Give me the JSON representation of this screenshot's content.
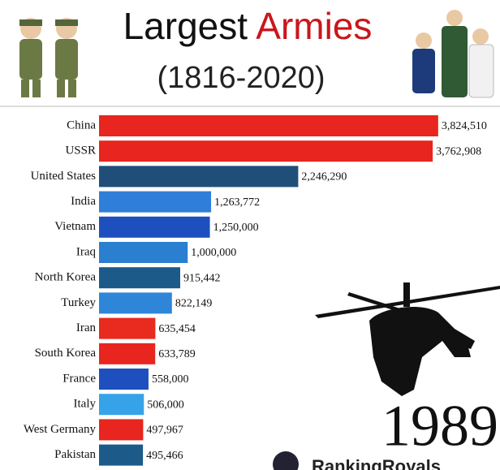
{
  "chart_data": {
    "type": "bar",
    "orientation": "horizontal",
    "title": [
      "Largest",
      "Armies"
    ],
    "subtitle": "(1816-2020)",
    "year": "1989",
    "watermark": "RankingRoyals",
    "categories": [
      "China",
      "USSR",
      "United States",
      "India",
      "Vietnam",
      "Iraq",
      "North Korea",
      "Turkey",
      "Iran",
      "South Korea",
      "France",
      "Italy",
      "West Germany",
      "Pakistan"
    ],
    "values": [
      3824510,
      3762908,
      2246290,
      1263772,
      1250000,
      1000000,
      915442,
      822149,
      635454,
      633789,
      558000,
      506000,
      497967,
      495466
    ],
    "value_labels": [
      "3,824,510",
      "3,762,908",
      "2,246,290",
      "1,263,772",
      "1,250,000",
      "1,000,000",
      "915,442",
      "822,149",
      "635,454",
      "633,789",
      "558,000",
      "506,000",
      "497,967",
      "495,466"
    ],
    "colors": [
      "#e8251f",
      "#e8251f",
      "#1f4e79",
      "#2f7fd8",
      "#1d4fbf",
      "#2a7fd0",
      "#1c5a8a",
      "#2f86d8",
      "#e82a1f",
      "#e8251f",
      "#1d4fbf",
      "#36a3e8",
      "#e8251f",
      "#1c5a8a"
    ],
    "xlim": [
      0,
      4000000
    ]
  }
}
